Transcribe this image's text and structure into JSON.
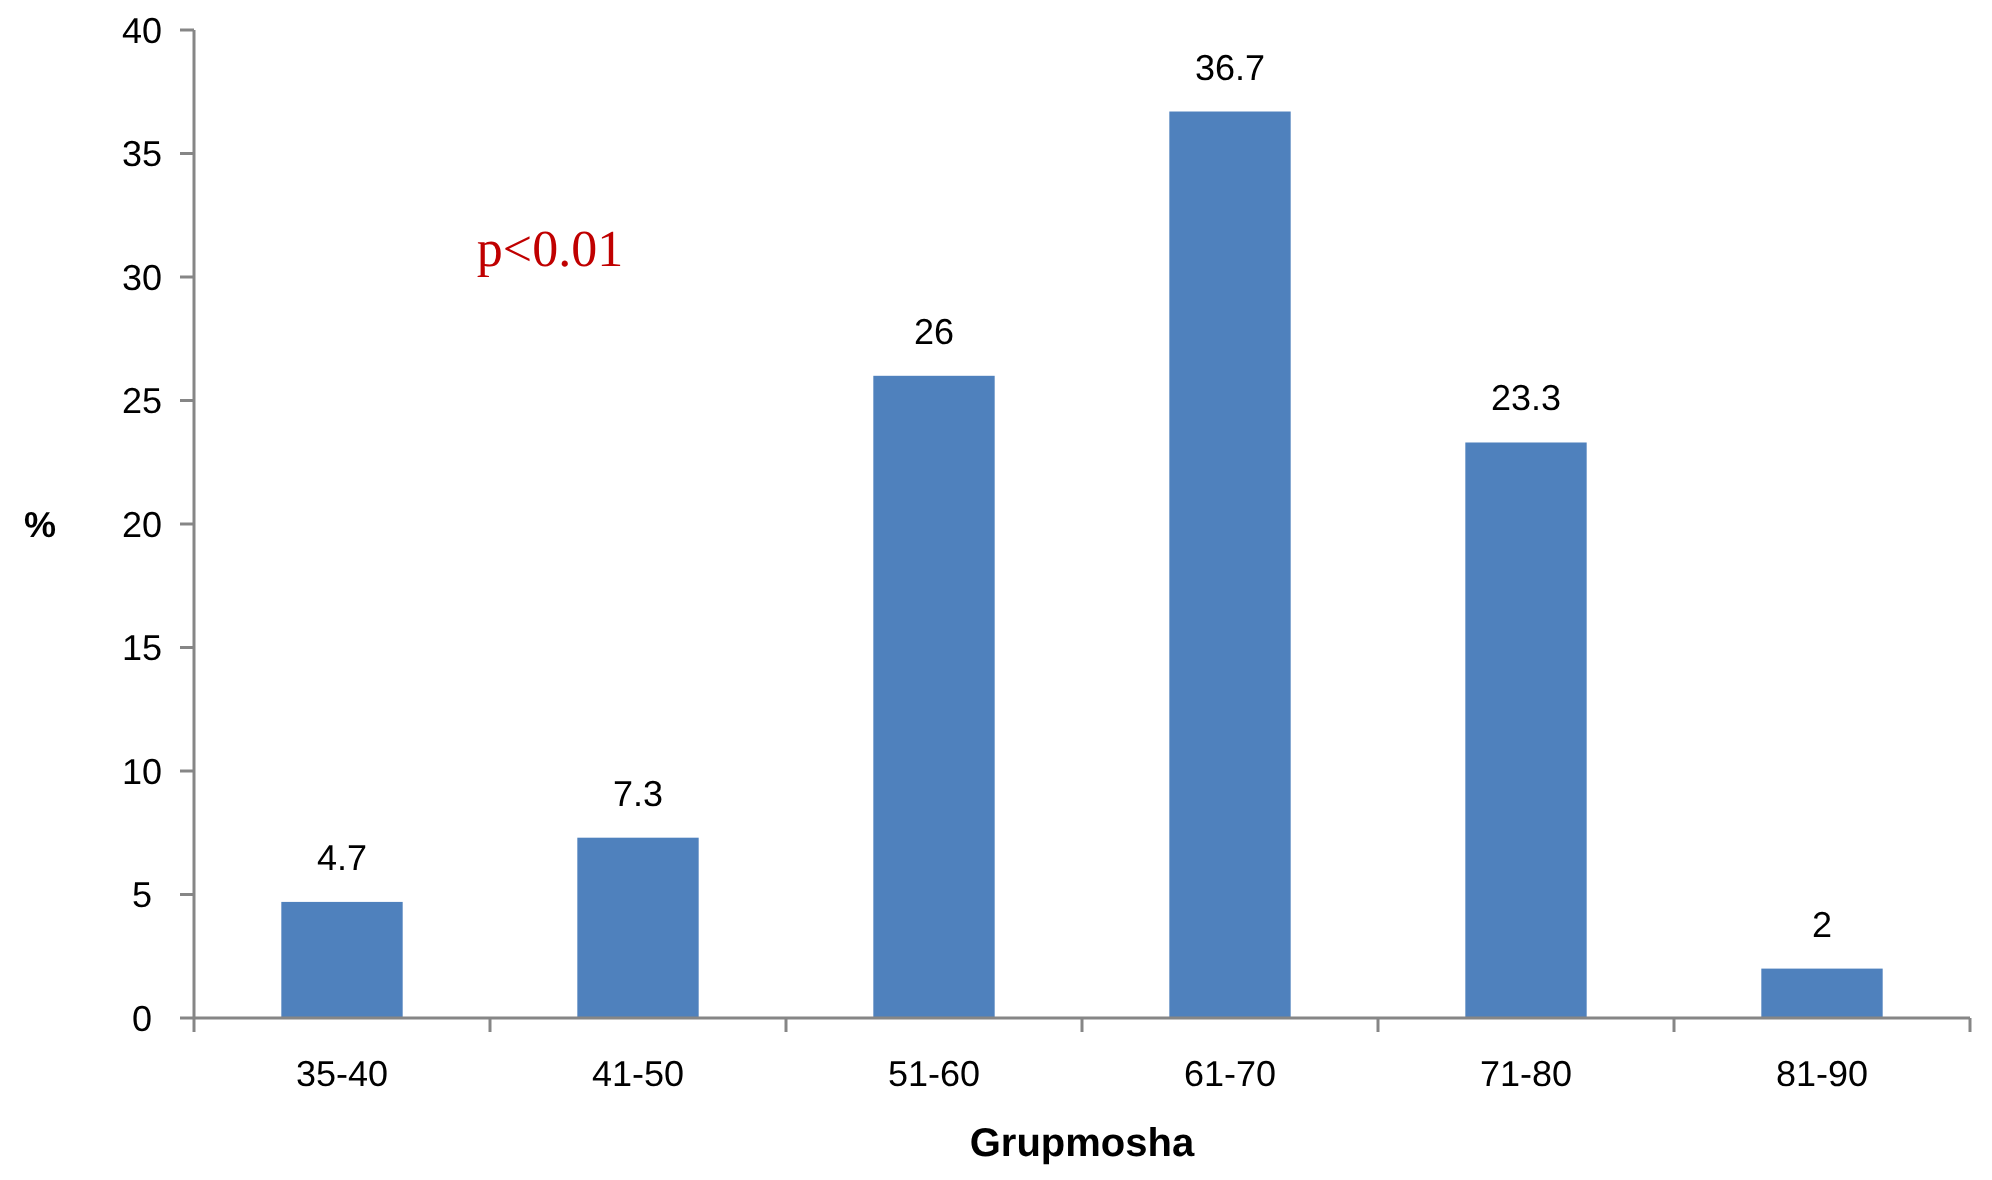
{
  "chart_data": {
    "type": "bar",
    "xlabel": "Grupmosha",
    "ylabel": "%",
    "categories": [
      "35-40",
      "41-50",
      "51-60",
      "61-70",
      "71-80",
      "81-90"
    ],
    "values": [
      4.7,
      7.3,
      26,
      36.7,
      23.3,
      2
    ],
    "color": "#4f81bd",
    "ylim": [
      0,
      40
    ],
    "yticks": [
      0,
      5,
      10,
      15,
      20,
      25,
      30,
      35,
      40
    ],
    "data_labels": true,
    "grid": false,
    "annotations": [
      "p<0.01"
    ]
  }
}
